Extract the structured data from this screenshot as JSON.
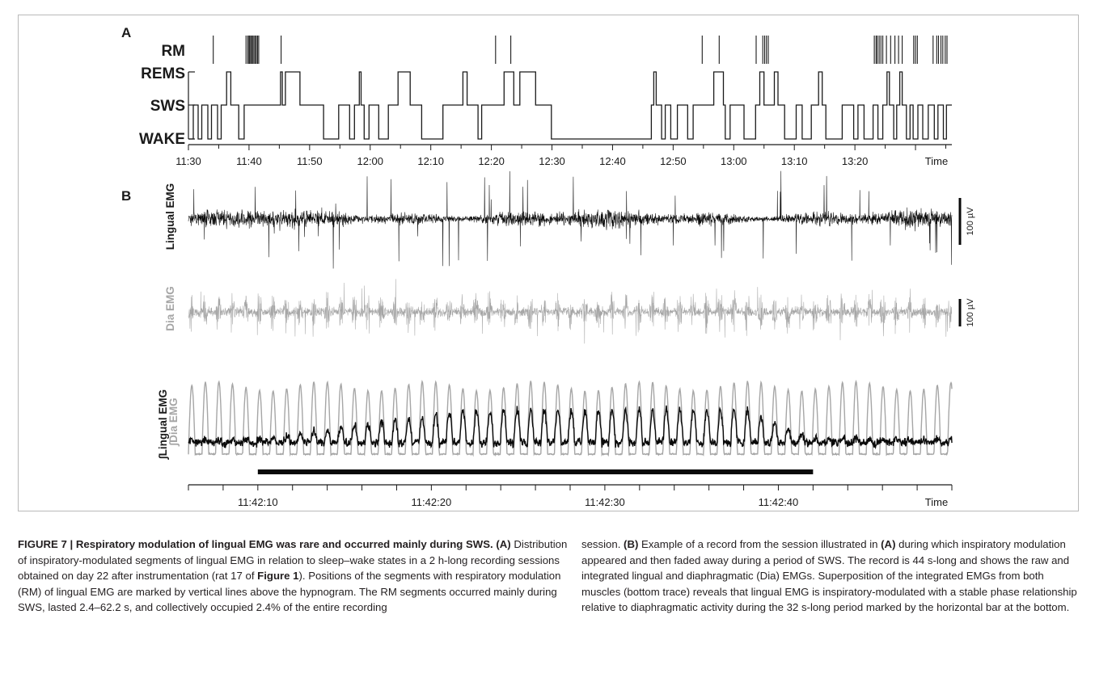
{
  "figure": {
    "panel_a_label": "A",
    "panel_b_label": "B",
    "hypnogram": {
      "rm_label": "RM",
      "state_labels": [
        "REMS",
        "SWS",
        "WAKE"
      ],
      "time_ticks": [
        "11:30",
        "11:40",
        "11:50",
        "12:00",
        "12:10",
        "12:20",
        "12:30",
        "12:40",
        "12:50",
        "13:00",
        "13:10",
        "13:20"
      ],
      "time_label": "Time",
      "rm_marks_min": [
        4.1,
        9.5,
        9.8,
        10.0,
        10.1,
        10.3,
        10.4,
        10.6,
        10.8,
        11.0,
        11.2,
        11.4,
        11.6,
        15.3,
        50.7,
        53.2,
        84.8,
        87.6,
        93.7,
        94.8,
        95.1,
        95.4,
        95.7,
        113.2,
        113.5,
        113.7,
        114.0,
        114.3,
        114.6,
        115.2,
        115.9,
        116.6,
        117.2,
        117.8,
        119.7,
        120.0,
        120.3,
        122.9,
        123.5,
        123.8,
        124.2,
        124.5,
        124.9,
        125.2
      ],
      "hypnogram_steps": [
        [
          0,
          "WAKE"
        ],
        [
          0.8,
          "SWS"
        ],
        [
          1.6,
          "WAKE"
        ],
        [
          2.2,
          "SWS"
        ],
        [
          3.2,
          "WAKE"
        ],
        [
          3.8,
          "SWS"
        ],
        [
          4.8,
          "WAKE"
        ],
        [
          5.4,
          "SWS"
        ],
        [
          6.3,
          "REMS"
        ],
        [
          7.0,
          "SWS"
        ],
        [
          8.3,
          "WAKE"
        ],
        [
          9.2,
          "SWS"
        ],
        [
          15.2,
          "REMS"
        ],
        [
          15.5,
          "SWS"
        ],
        [
          16.0,
          "REMS"
        ],
        [
          18.4,
          "SWS"
        ],
        [
          22.3,
          "WAKE"
        ],
        [
          24.8,
          "SWS"
        ],
        [
          26.6,
          "WAKE"
        ],
        [
          27.4,
          "SWS"
        ],
        [
          28.2,
          "REMS"
        ],
        [
          28.5,
          "SWS"
        ],
        [
          29.0,
          "WAKE"
        ],
        [
          29.8,
          "SWS"
        ],
        [
          31.4,
          "WAKE"
        ],
        [
          33.0,
          "SWS"
        ],
        [
          34.6,
          "REMS"
        ],
        [
          36.6,
          "SWS"
        ],
        [
          38.5,
          "WAKE"
        ],
        [
          42.0,
          "SWS"
        ],
        [
          45.3,
          "REMS"
        ],
        [
          46.0,
          "SWS"
        ],
        [
          47.8,
          "WAKE"
        ],
        [
          48.4,
          "SWS"
        ],
        [
          52.1,
          "REMS"
        ],
        [
          53.7,
          "SWS"
        ],
        [
          54.7,
          "REMS"
        ],
        [
          57.3,
          "SWS"
        ],
        [
          59.9,
          "WAKE"
        ],
        [
          76.4,
          "SWS"
        ],
        [
          76.8,
          "REMS"
        ],
        [
          77.2,
          "SWS"
        ],
        [
          78.1,
          "WAKE"
        ],
        [
          78.7,
          "SWS"
        ],
        [
          79.6,
          "WAKE"
        ],
        [
          80.7,
          "SWS"
        ],
        [
          82.4,
          "WAKE"
        ],
        [
          83.3,
          "SWS"
        ],
        [
          86.7,
          "REMS"
        ],
        [
          88.3,
          "SWS"
        ],
        [
          88.6,
          "WAKE"
        ],
        [
          89.4,
          "SWS"
        ],
        [
          91.7,
          "WAKE"
        ],
        [
          93.6,
          "SWS"
        ],
        [
          94.3,
          "REMS"
        ],
        [
          95.0,
          "SWS"
        ],
        [
          96.7,
          "REMS"
        ],
        [
          97.3,
          "SWS"
        ],
        [
          98.4,
          "WAKE"
        ],
        [
          100.3,
          "SWS"
        ],
        [
          101.3,
          "WAKE"
        ],
        [
          102.8,
          "SWS"
        ],
        [
          104.0,
          "REMS"
        ],
        [
          104.6,
          "SWS"
        ],
        [
          105.2,
          "WAKE"
        ],
        [
          107.9,
          "SWS"
        ],
        [
          109.8,
          "WAKE"
        ],
        [
          110.5,
          "SWS"
        ],
        [
          111.5,
          "WAKE"
        ],
        [
          113.0,
          "SWS"
        ],
        [
          113.8,
          "WAKE"
        ],
        [
          114.6,
          "SWS"
        ],
        [
          115.3,
          "REMS"
        ],
        [
          115.7,
          "SWS"
        ],
        [
          116.4,
          "WAKE"
        ],
        [
          116.9,
          "SWS"
        ],
        [
          117.4,
          "REMS"
        ],
        [
          117.8,
          "SWS"
        ],
        [
          118.5,
          "WAKE"
        ],
        [
          119.1,
          "SWS"
        ],
        [
          119.6,
          "WAKE"
        ],
        [
          120.4,
          "SWS"
        ],
        [
          121.2,
          "WAKE"
        ],
        [
          122.1,
          "SWS"
        ],
        [
          123.1,
          "WAKE"
        ],
        [
          123.7,
          "SWS"
        ],
        [
          124.6,
          "WAKE"
        ],
        [
          125.1,
          "SWS"
        ]
      ],
      "hypnogram_end_min": 126
    },
    "traces": {
      "lingual_label": "Lingual EMG",
      "dia_label": "Dia EMG",
      "int_lingual_label": "∫Lingual EMG",
      "int_dia_label": "∫Dia EMG",
      "scale_label_1": "100 µV",
      "scale_label_2": "100 µV",
      "time_ticks": [
        "11:42:10",
        "11:42:20",
        "11:42:30",
        "11:42:40"
      ],
      "time_label": "Time",
      "bar_start_s": 4,
      "bar_end_s": 36,
      "record_length_s": 44,
      "colors": {
        "lingual": "#0a0a0a",
        "dia": "#a6a6a6"
      }
    }
  },
  "caption": {
    "title": "FIGURE 7 | Respiratory modulation of lingual EMG was rare and occurred mainly during SWS",
    "p1_end": ".",
    "a_label": "(A)",
    "a_text_1": " Distribution of inspiratory-modulated segments of lingual EMG in relation to sleep–wake states in a 2 h-long recording sessions obtained on day 22 after instrumentation (rat 17 of ",
    "a_fig_ref": "Figure 1",
    "a_text_2": "). Positions of the segments with respiratory modulation (RM) of lingual EMG are marked by vertical lines above the hypnogram. The RM segments occurred mainly during SWS, lasted 2.4–62.2 s, and collectively occupied 2.4% of the entire recording",
    "right_1": "session. ",
    "b_label": "(B)",
    "b_text_1": " Example of a record from the session illustrated in ",
    "b_ref_a": "(A)",
    "b_text_2": " during which inspiratory modulation appeared and then faded away during a period of SWS. The record is 44 s-long and shows the raw and integrated lingual and diaphragmatic (Dia) EMGs. Superposition of the integrated EMGs from both muscles (bottom trace) reveals that lingual EMG is inspiratory-modulated with a stable phase relationship relative to diaphragmatic activity during the 32 s-long period marked by the horizontal bar at the bottom."
  }
}
